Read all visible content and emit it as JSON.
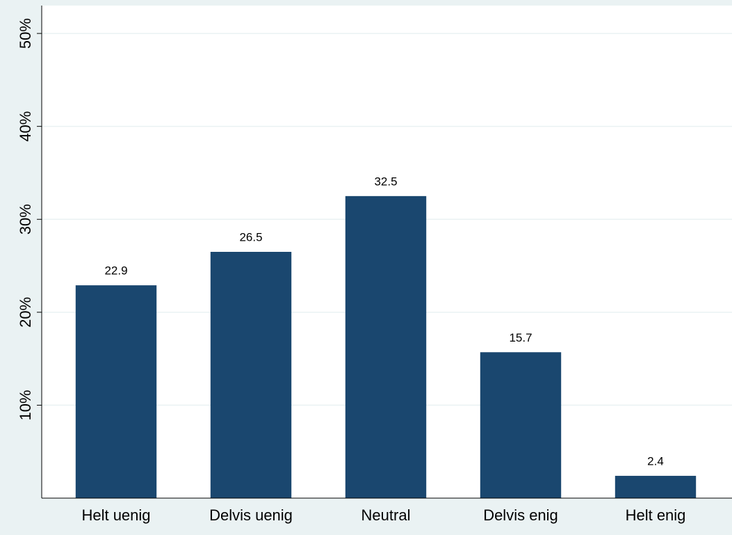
{
  "chart_data": {
    "type": "bar",
    "categories": [
      "Helt uenig",
      "Delvis uenig",
      "Neutral",
      "Delvis enig",
      "Helt enig"
    ],
    "values": [
      22.9,
      26.5,
      32.5,
      15.7,
      2.4
    ],
    "color": "#1a476f",
    "ylim": [
      0,
      53
    ],
    "yticks": [
      {
        "value": 10,
        "label": "10%"
      },
      {
        "value": 20,
        "label": "20%"
      },
      {
        "value": 30,
        "label": "30%"
      },
      {
        "value": 40,
        "label": "40%"
      },
      {
        "value": 50,
        "label": "50%"
      }
    ],
    "grid": true
  }
}
